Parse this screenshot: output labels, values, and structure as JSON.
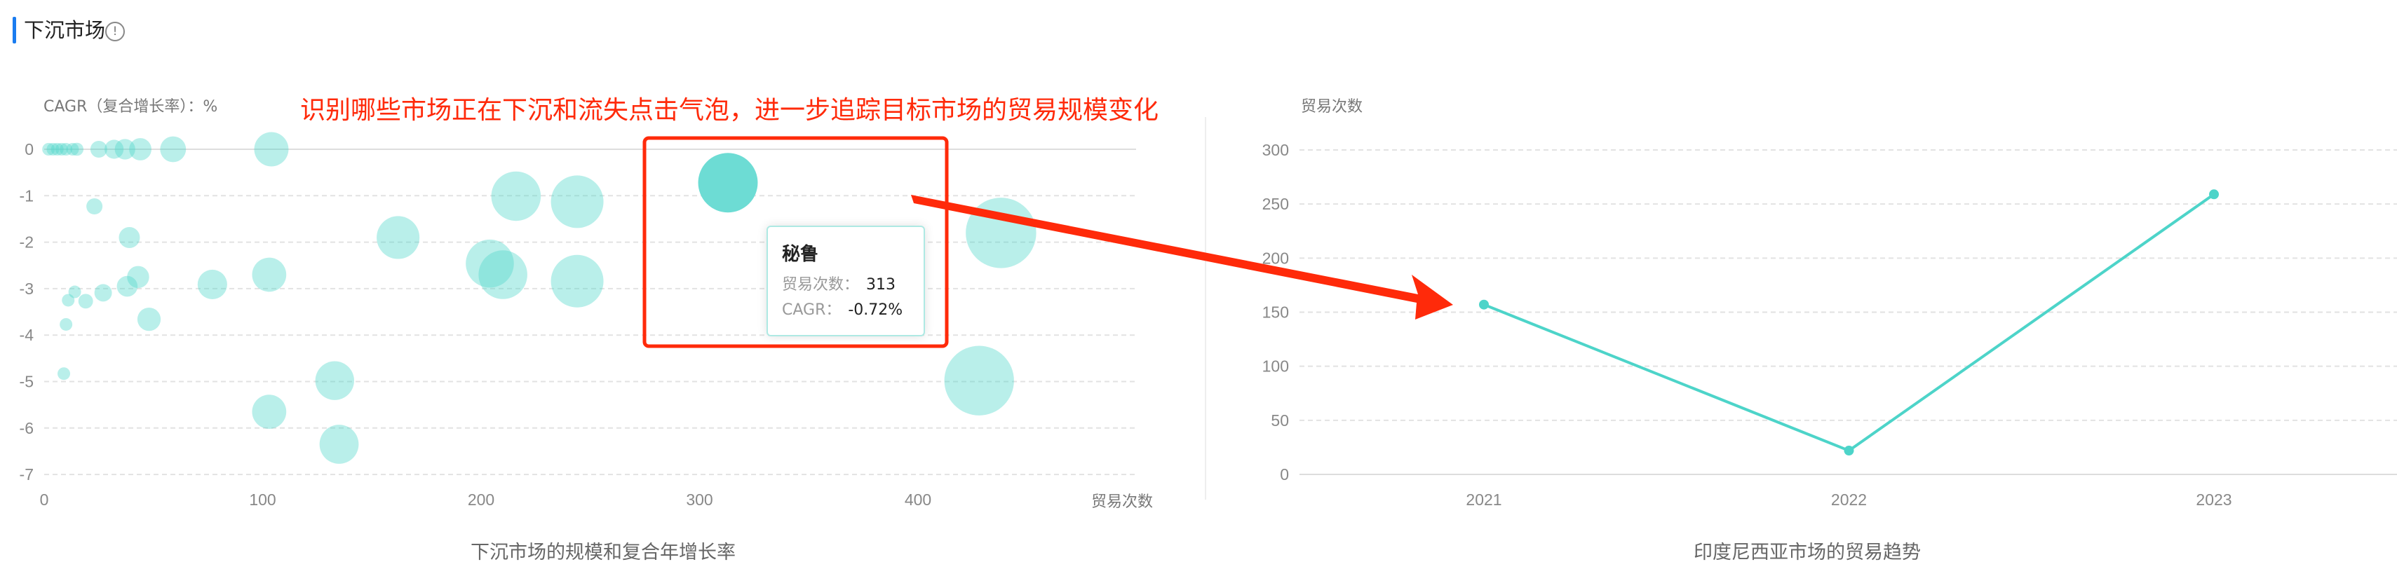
{
  "header": {
    "title": "下沉市场",
    "info_icon": "info-circle-icon"
  },
  "annotation": "识别哪些市场正在下沉和流失点击气泡，进一步追踪目标市场的贸易规模变化",
  "tooltip": {
    "name": "秘鲁",
    "trade_label": "贸易次数：",
    "trade_value": "313",
    "cagr_label": "CAGR：",
    "cagr_value": "-0.72%"
  },
  "colors": {
    "bubble": "#4fd8ca",
    "highlight": "#6ddcd4",
    "line": "#4dd4c9",
    "annotation": "#ff2a0a",
    "title_accent": "#1a7cf0"
  },
  "chart_data": [
    {
      "type": "scatter",
      "subtype": "bubble",
      "title": "下沉市场的规模和复合年增长率",
      "xlabel": "贸易次数",
      "ylabel": "CAGR（复合增长率）：%",
      "xlim": [
        0,
        500
      ],
      "ylim": [
        -7,
        0
      ],
      "xticks": [
        "0",
        "100",
        "200",
        "300",
        "400"
      ],
      "yticks": [
        "0",
        "-1",
        "-2",
        "-3",
        "-4",
        "-5",
        "-6",
        "-7"
      ],
      "grid": true,
      "highlighted": "秘鲁",
      "points": [
        {
          "x": 2,
          "y": 0
        },
        {
          "x": 4,
          "y": 0
        },
        {
          "x": 6,
          "y": 0
        },
        {
          "x": 8,
          "y": 0
        },
        {
          "x": 10,
          "y": 0
        },
        {
          "x": 13,
          "y": 0
        },
        {
          "x": 15,
          "y": 0
        },
        {
          "x": 25,
          "y": 0
        },
        {
          "x": 32,
          "y": 0
        },
        {
          "x": 37,
          "y": 0
        },
        {
          "x": 44,
          "y": 0
        },
        {
          "x": 59,
          "y": 0
        },
        {
          "x": 104,
          "y": 0
        },
        {
          "x": 216,
          "y": -1.01
        },
        {
          "x": 244,
          "y": -1.13
        },
        {
          "name": "秘鲁",
          "x": 313,
          "y": -0.72
        },
        {
          "x": 438,
          "y": -1.8
        },
        {
          "x": 23,
          "y": -1.23
        },
        {
          "x": 39,
          "y": -1.9
        },
        {
          "x": 162,
          "y": -1.9
        },
        {
          "x": 204,
          "y": -2.46
        },
        {
          "x": 210,
          "y": -2.7
        },
        {
          "x": 244,
          "y": -2.84
        },
        {
          "x": 103,
          "y": -2.7
        },
        {
          "x": 77,
          "y": -2.91
        },
        {
          "x": 43,
          "y": -2.75
        },
        {
          "x": 38,
          "y": -2.95
        },
        {
          "x": 27,
          "y": -3.09
        },
        {
          "x": 14,
          "y": -3.07
        },
        {
          "x": 19,
          "y": -3.27
        },
        {
          "x": 11,
          "y": -3.25
        },
        {
          "x": 48,
          "y": -3.66
        },
        {
          "x": 10,
          "y": -3.77
        },
        {
          "x": 9,
          "y": -4.83
        },
        {
          "x": 133,
          "y": -4.98
        },
        {
          "x": 428,
          "y": -4.98
        },
        {
          "x": 103,
          "y": -5.65
        },
        {
          "x": 135,
          "y": -6.35
        }
      ]
    },
    {
      "type": "line",
      "title": "印度尼西亚市场的贸易趋势",
      "ylabel": "贸易次数",
      "categories": [
        "2021",
        "2022",
        "2023"
      ],
      "values": [
        157,
        22,
        259
      ],
      "ylim": [
        0,
        300
      ],
      "yticks": [
        "0",
        "50",
        "100",
        "150",
        "200",
        "250",
        "300"
      ],
      "grid": true
    }
  ]
}
